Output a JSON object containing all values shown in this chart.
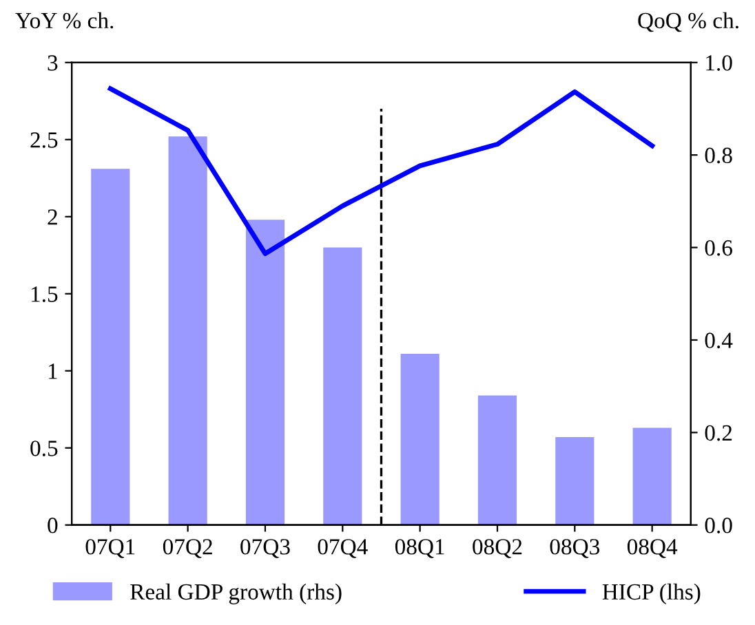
{
  "chart_data": {
    "type": "bar",
    "ylabel": "YoY % ch.",
    "y2label": "QoQ % ch.",
    "categories": [
      "07Q1",
      "07Q2",
      "07Q3",
      "07Q4",
      "08Q1",
      "08Q2",
      "08Q3",
      "08Q4"
    ],
    "series": [
      {
        "name": "Real GDP growth (rhs)",
        "axis": "y2",
        "color": "#9999ff",
        "values": [
          0.77,
          0.84,
          0.66,
          0.6,
          0.37,
          0.28,
          0.19,
          0.21
        ]
      },
      {
        "name": "HICP (lhs)",
        "type": "line",
        "color": "#0000ff",
        "values": [
          2.83,
          2.56,
          1.76,
          2.07,
          2.33,
          2.47,
          2.81,
          2.46
        ]
      }
    ],
    "ylim": [
      0,
      3
    ],
    "yticks": [
      0,
      0.5,
      1,
      1.5,
      2,
      2.5,
      3
    ],
    "y2lim": [
      0,
      1.0
    ],
    "y2ticks": [
      {
        "value": 0,
        "label": "0.0"
      },
      {
        "value": 0.2,
        "label": "0.2"
      },
      {
        "value": 0.4,
        "label": "0.4"
      },
      {
        "value": 0.6,
        "label": "0.6"
      },
      {
        "value": 0.8,
        "label": "0.8"
      },
      {
        "value": 1.0,
        "label": "1.0"
      }
    ],
    "legend": "bottom",
    "grid": false,
    "marker": "none"
  }
}
